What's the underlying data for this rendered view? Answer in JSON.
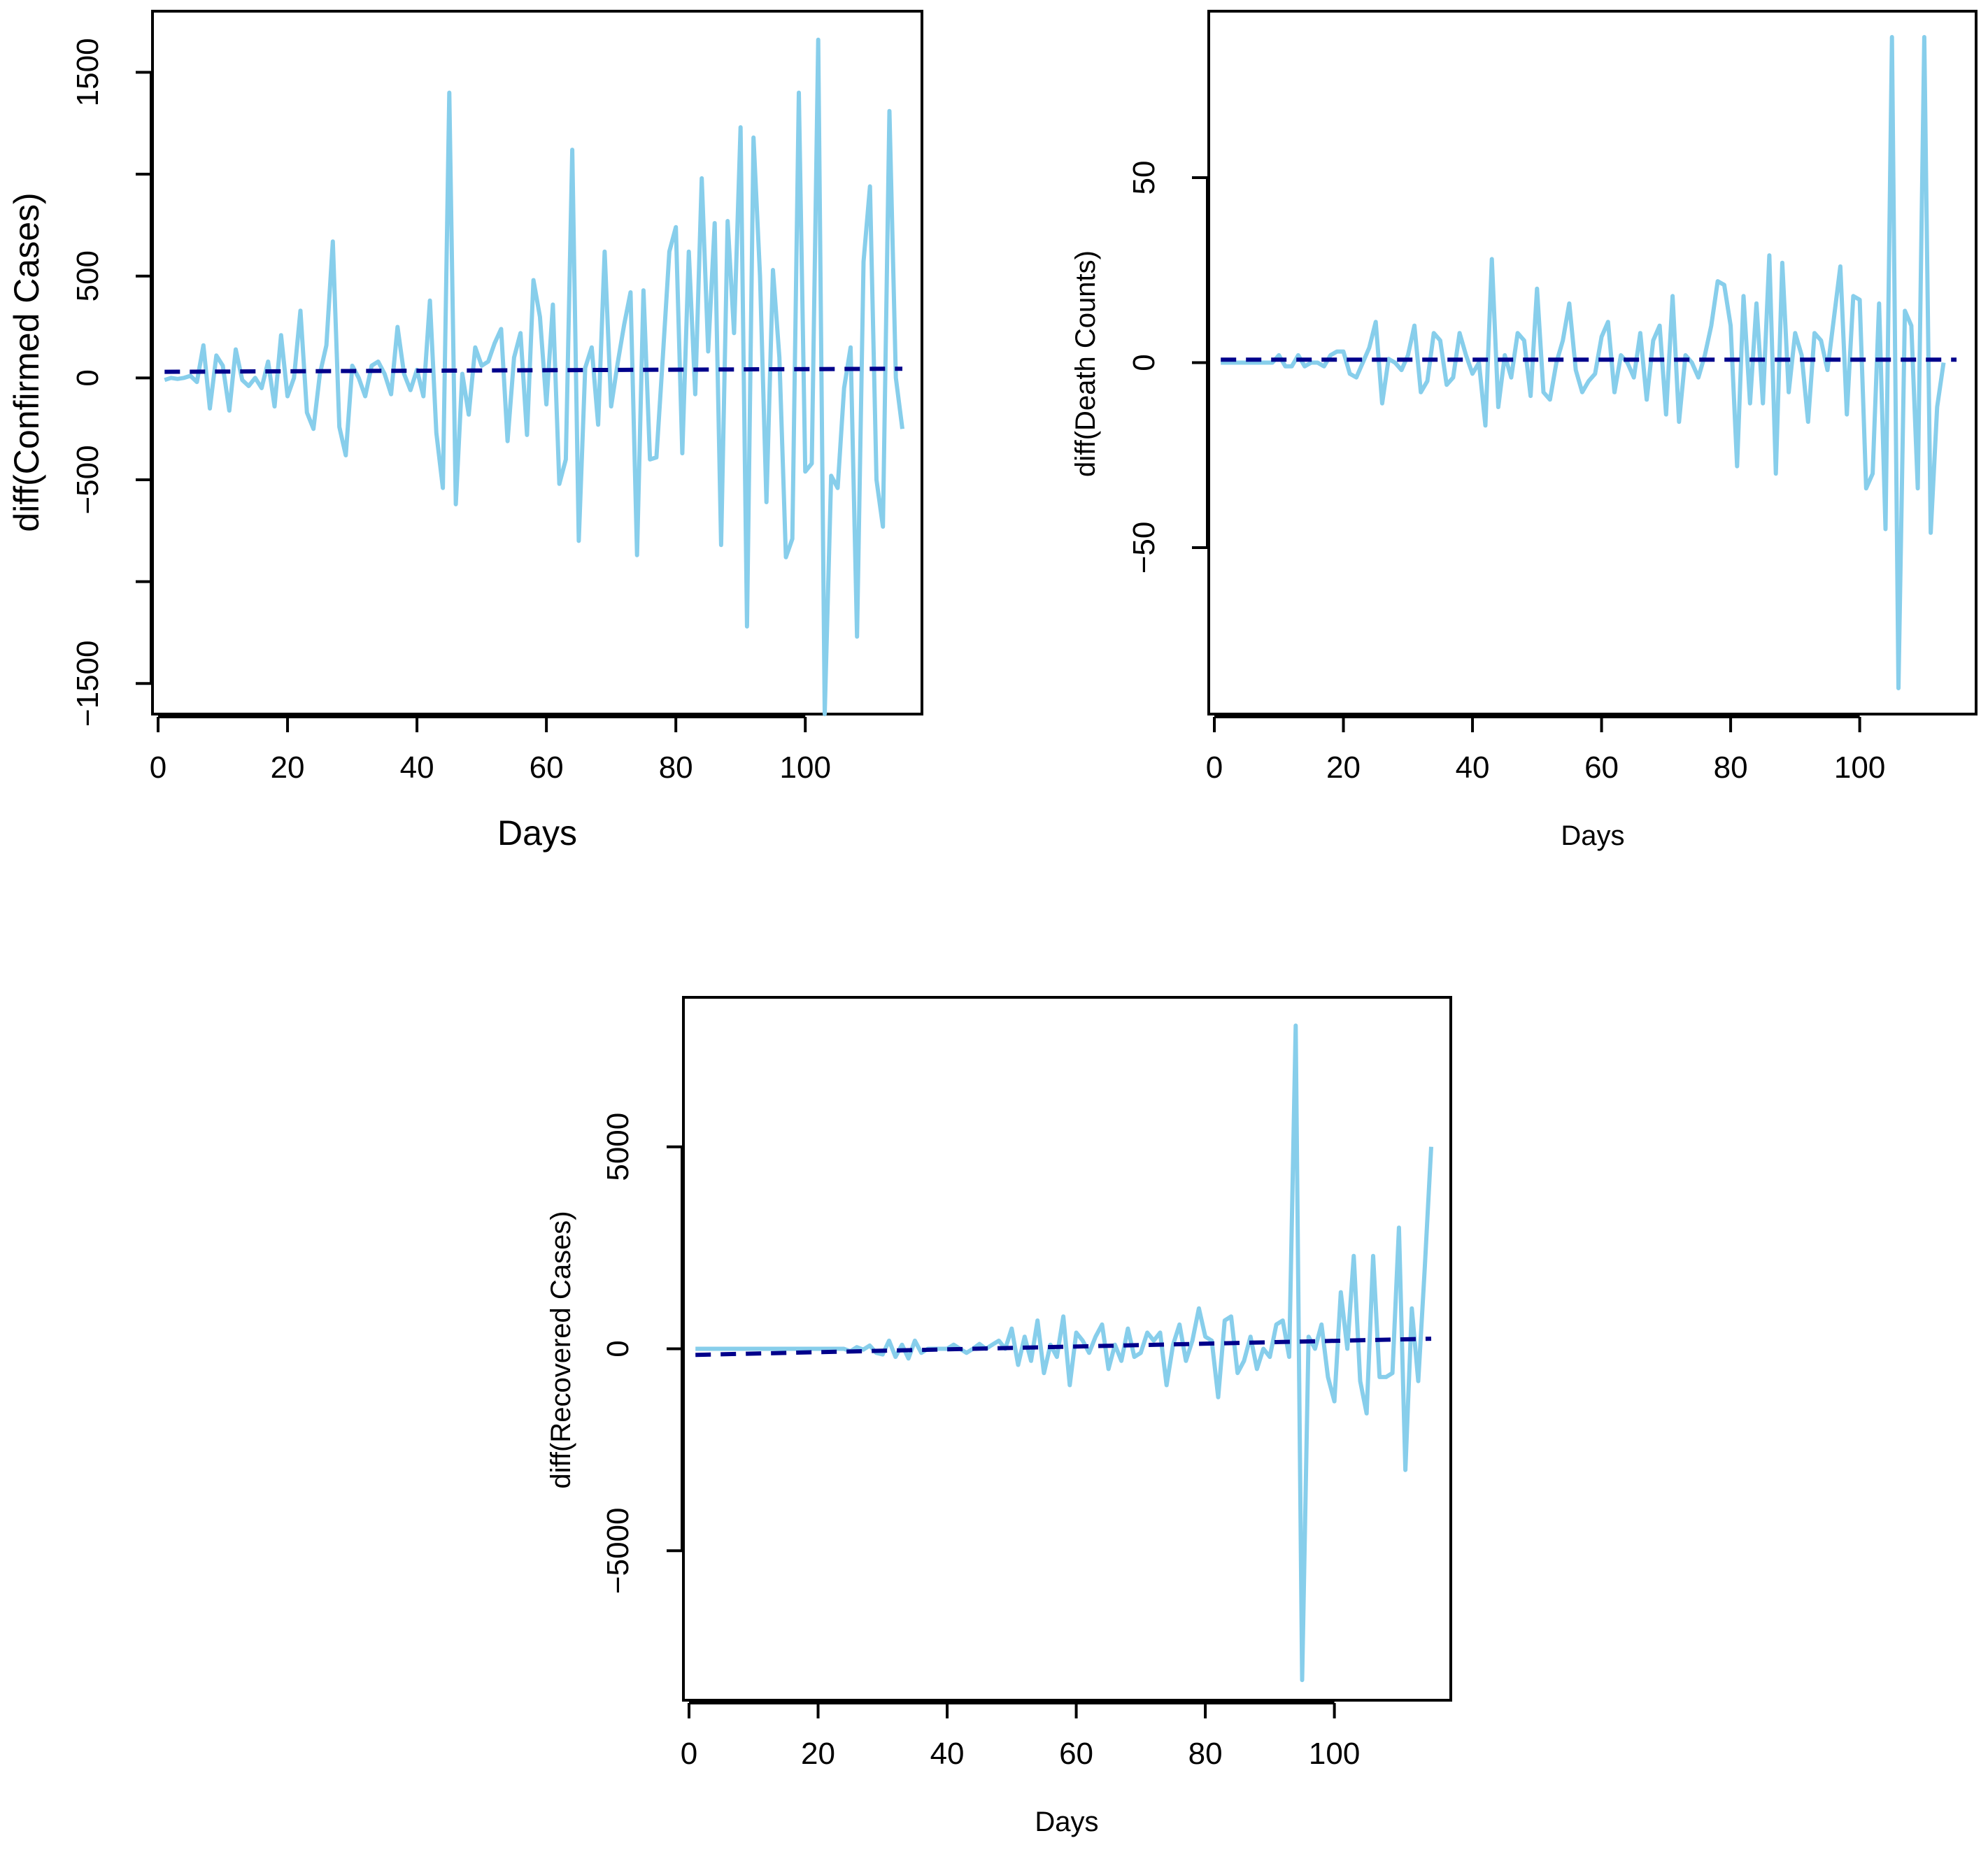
{
  "colors": {
    "series": "#87ceeb",
    "trend": "#00008b"
  },
  "chart_data": [
    {
      "type": "line",
      "title": "",
      "xlabel": "Days",
      "ylabel": "diff(Confirmed Cases)",
      "xlim": [
        0,
        115
      ],
      "ylim": [
        -1650,
        1800
      ],
      "xticks": [
        0,
        20,
        40,
        60,
        80,
        100
      ],
      "xtick_labels": [
        "0",
        "20",
        "40",
        "60",
        "80",
        "100"
      ],
      "yticks": [
        -1500,
        -1000,
        -500,
        0,
        500,
        1000,
        1500
      ],
      "ytick_labels": [
        "−1500",
        "",
        "−500",
        "0",
        "500",
        "",
        "1500"
      ],
      "grid": false,
      "series": [
        {
          "name": "diff(Confirmed Cases)",
          "style": "solid",
          "x_start": 1,
          "values": [
            -10,
            0,
            -5,
            0,
            10,
            -20,
            160,
            -150,
            110,
            60,
            -160,
            140,
            -10,
            -40,
            0,
            -50,
            80,
            -140,
            210,
            -90,
            0,
            330,
            -170,
            -250,
            20,
            160,
            670,
            -240,
            -380,
            60,
            0,
            -90,
            60,
            80,
            20,
            -80,
            250,
            20,
            -60,
            40,
            -90,
            380,
            -270,
            -540,
            1400,
            -620,
            20,
            -180,
            150,
            60,
            80,
            170,
            240,
            -310,
            100,
            220,
            -280,
            480,
            300,
            -130,
            360,
            -520,
            -400,
            1120,
            -800,
            50,
            150,
            -230,
            620,
            -140,
            70,
            260,
            420,
            -870,
            430,
            -400,
            -390,
            110,
            620,
            740,
            -370,
            620,
            -80,
            980,
            130,
            760,
            -820,
            770,
            220,
            1230,
            -1220,
            1180,
            500,
            -610,
            530,
            100,
            -880,
            -790,
            1400,
            -460,
            -420,
            1660,
            -1650,
            -480,
            -540,
            -50,
            150,
            -1270,
            570,
            940,
            -500,
            -730,
            1310,
            0,
            -250
          ]
        },
        {
          "name": "trend",
          "style": "dashed",
          "x": [
            1,
            115
          ],
          "values": [
            30,
            45
          ]
        }
      ]
    },
    {
      "type": "line",
      "title": "",
      "xlabel": "Days",
      "ylabel": "diff(Death Counts)",
      "xlim": [
        0,
        115
      ],
      "ylim": [
        -95,
        95
      ],
      "xticks": [
        0,
        20,
        40,
        60,
        80,
        100
      ],
      "xtick_labels": [
        "0",
        "20",
        "40",
        "60",
        "80",
        "100"
      ],
      "yticks": [
        -50,
        0,
        50
      ],
      "ytick_labels": [
        "−50",
        "0",
        "50"
      ],
      "grid": false,
      "series": [
        {
          "name": "diff(Death Counts)",
          "style": "solid",
          "x_start": 1,
          "values": [
            0,
            0,
            0,
            0,
            0,
            0,
            0,
            0,
            0,
            2,
            -1,
            -1,
            2,
            -1,
            0,
            0,
            -1,
            2,
            3,
            3,
            -3,
            -4,
            0,
            4,
            11,
            -11,
            1,
            0,
            -2,
            2,
            10,
            -8,
            -5,
            8,
            6,
            -6,
            -4,
            8,
            2,
            -3,
            0,
            -17,
            28,
            -12,
            2,
            -4,
            8,
            6,
            -9,
            20,
            -8,
            -10,
            0,
            6,
            16,
            -2,
            -8,
            -5,
            -3,
            7,
            11,
            -8,
            2,
            0,
            -4,
            8,
            -10,
            6,
            10,
            -14,
            18,
            -16,
            2,
            0,
            -4,
            2,
            10,
            22,
            21,
            10,
            -28,
            18,
            -11,
            16,
            -11,
            29,
            -30,
            27,
            -8,
            8,
            2,
            -16,
            8,
            6,
            -2,
            12,
            26,
            -14,
            18,
            17,
            -34,
            -30,
            16,
            -45,
            88,
            -88,
            14,
            10,
            -34,
            88,
            -46,
            -12,
            0
          ]
        },
        {
          "name": "trend",
          "style": "dashed",
          "x": [
            1,
            115
          ],
          "values": [
            0.8,
            0.8
          ]
        }
      ]
    },
    {
      "type": "line",
      "title": "",
      "xlabel": "Days",
      "ylabel": "diff(Recovered Cases)",
      "xlim": [
        0,
        115
      ],
      "ylim": [
        -8700,
        8700
      ],
      "xticks": [
        0,
        20,
        40,
        60,
        80,
        100
      ],
      "xtick_labels": [
        "0",
        "20",
        "40",
        "60",
        "80",
        "100"
      ],
      "yticks": [
        -5000,
        0,
        5000
      ],
      "ytick_labels": [
        "−5000",
        "0",
        "5000"
      ],
      "grid": false,
      "series": [
        {
          "name": "diff(Recovered Cases)",
          "style": "solid",
          "x_start": 1,
          "values": [
            0,
            0,
            0,
            0,
            0,
            0,
            0,
            0,
            0,
            0,
            0,
            0,
            0,
            0,
            0,
            0,
            0,
            0,
            0,
            0,
            0,
            0,
            0,
            0,
            -60,
            40,
            -20,
            80,
            -100,
            -140,
            200,
            -200,
            100,
            -240,
            200,
            -100,
            0,
            0,
            0,
            0,
            100,
            0,
            -100,
            0,
            120,
            0,
            100,
            200,
            0,
            500,
            -400,
            300,
            -300,
            700,
            -600,
            100,
            -200,
            800,
            -900,
            400,
            200,
            -100,
            300,
            600,
            -500,
            100,
            -300,
            500,
            -200,
            -100,
            400,
            200,
            400,
            -900,
            100,
            600,
            -300,
            200,
            1000,
            300,
            200,
            -1200,
            700,
            800,
            -600,
            -300,
            300,
            -500,
            0,
            -200,
            600,
            700,
            -200,
            8000,
            -8200,
            300,
            0,
            600,
            -700,
            -1300,
            1400,
            0,
            2300,
            -800,
            -1600,
            2300,
            -700,
            -700,
            -600,
            3000,
            -3000,
            1000,
            -800,
            2000,
            5000
          ]
        },
        {
          "name": "trend",
          "style": "dashed",
          "x": [
            1,
            115
          ],
          "values": [
            -150,
            250
          ]
        }
      ]
    }
  ]
}
